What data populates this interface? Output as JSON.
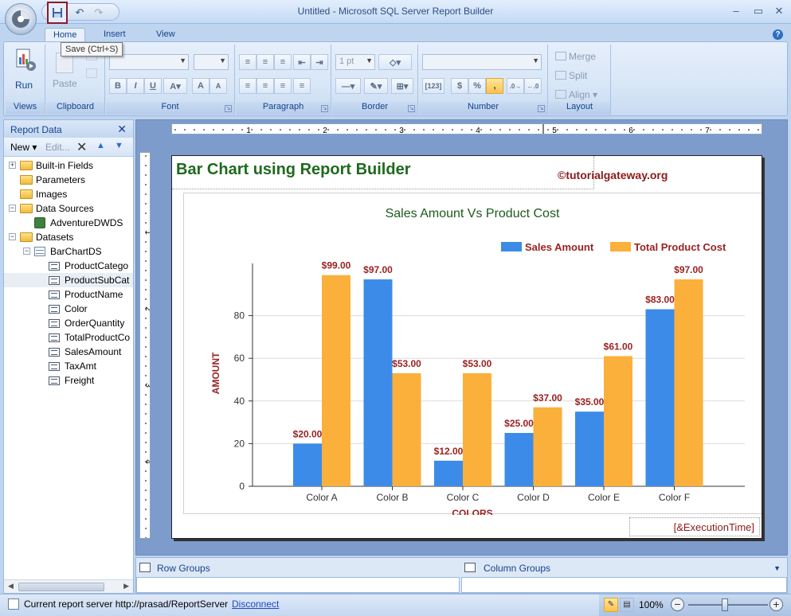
{
  "window": {
    "title": "Untitled - Microsoft SQL Server Report Builder",
    "tooltip": "Save (Ctrl+S)"
  },
  "ribbon": {
    "tabs": [
      "Home",
      "Insert",
      "View"
    ],
    "groups": {
      "views": "Views",
      "clipboard": "Clipboard",
      "font": "Font",
      "paragraph": "Paragraph",
      "border": "Border",
      "number": "Number",
      "layout": "Layout"
    },
    "run_label": "Run",
    "paste_label": "Paste",
    "border_width": "1 pt",
    "layout_items": [
      "Merge",
      "Split",
      "Align"
    ],
    "number_placeholder_glyph": "[123]",
    "currency_glyph": "$",
    "percent_glyph": "%",
    "comma_glyph": ","
  },
  "report_data": {
    "title": "Report Data",
    "toolbar": {
      "new": "New",
      "edit": "Edit..."
    },
    "tree": [
      {
        "label": "Built-in Fields",
        "level": 0,
        "kind": "folder",
        "twist": "+"
      },
      {
        "label": "Parameters",
        "level": 0,
        "kind": "folder",
        "twist": ""
      },
      {
        "label": "Images",
        "level": 0,
        "kind": "folder",
        "twist": ""
      },
      {
        "label": "Data Sources",
        "level": 0,
        "kind": "folder",
        "twist": "-"
      },
      {
        "label": "AdventureDWDS",
        "level": 1,
        "kind": "source",
        "twist": ""
      },
      {
        "label": "Datasets",
        "level": 0,
        "kind": "folder",
        "twist": "-"
      },
      {
        "label": "BarChartDS",
        "level": 1,
        "kind": "dataset",
        "twist": "-"
      },
      {
        "label": "ProductCatego",
        "level": 2,
        "kind": "field",
        "twist": ""
      },
      {
        "label": "ProductSubCat",
        "level": 2,
        "kind": "field",
        "twist": "",
        "selected": true
      },
      {
        "label": "ProductName",
        "level": 2,
        "kind": "field",
        "twist": ""
      },
      {
        "label": "Color",
        "level": 2,
        "kind": "field",
        "twist": ""
      },
      {
        "label": "OrderQuantity",
        "level": 2,
        "kind": "field",
        "twist": ""
      },
      {
        "label": "TotalProductCo",
        "level": 2,
        "kind": "field",
        "twist": ""
      },
      {
        "label": "SalesAmount",
        "level": 2,
        "kind": "field",
        "twist": ""
      },
      {
        "label": "TaxAmt",
        "level": 2,
        "kind": "field",
        "twist": ""
      },
      {
        "label": "Freight",
        "level": 2,
        "kind": "field",
        "twist": ""
      }
    ]
  },
  "report": {
    "title": "Bar Chart using Report Builder",
    "copyright": "©tutorialgateway.org",
    "execution_time": "[&ExecutionTime]",
    "ruler_top_numbers": [
      "1",
      "2",
      "3",
      "4",
      "5",
      "6",
      "7"
    ],
    "ruler_left_numbers": [
      "1",
      "2",
      "3",
      "4"
    ]
  },
  "chart_data": {
    "type": "bar",
    "title": "Sales Amount Vs Product Cost",
    "xlabel": "COLORS",
    "ylabel": "AMOUNT",
    "categories": [
      "Color A",
      "Color B",
      "Color C",
      "Color D",
      "Color E",
      "Color F"
    ],
    "ylim": [
      0,
      100
    ],
    "yticks": [
      0,
      20,
      40,
      60,
      80
    ],
    "grid": true,
    "legend_position": "top-right",
    "series": [
      {
        "name": "Sales Amount",
        "color": "#3d8be8",
        "values": [
          20,
          97,
          12,
          25,
          35,
          83
        ],
        "labels": [
          "$20.00",
          "$97.00",
          "$12.00",
          "$25.00",
          "$35.00",
          "$83.00"
        ]
      },
      {
        "name": "Total Product Cost",
        "color": "#fbb03b",
        "values": [
          99,
          53,
          53,
          37,
          61,
          97
        ],
        "labels": [
          "$99.00",
          "$53.00",
          "$53.00",
          "$37.00",
          "$61.00",
          "$97.00"
        ]
      }
    ]
  },
  "groups": {
    "row_groups": "Row Groups",
    "column_groups": "Column Groups"
  },
  "status": {
    "server_text": "Current report server http://prasad/ReportServer",
    "disconnect": "Disconnect",
    "zoom": "100%"
  }
}
